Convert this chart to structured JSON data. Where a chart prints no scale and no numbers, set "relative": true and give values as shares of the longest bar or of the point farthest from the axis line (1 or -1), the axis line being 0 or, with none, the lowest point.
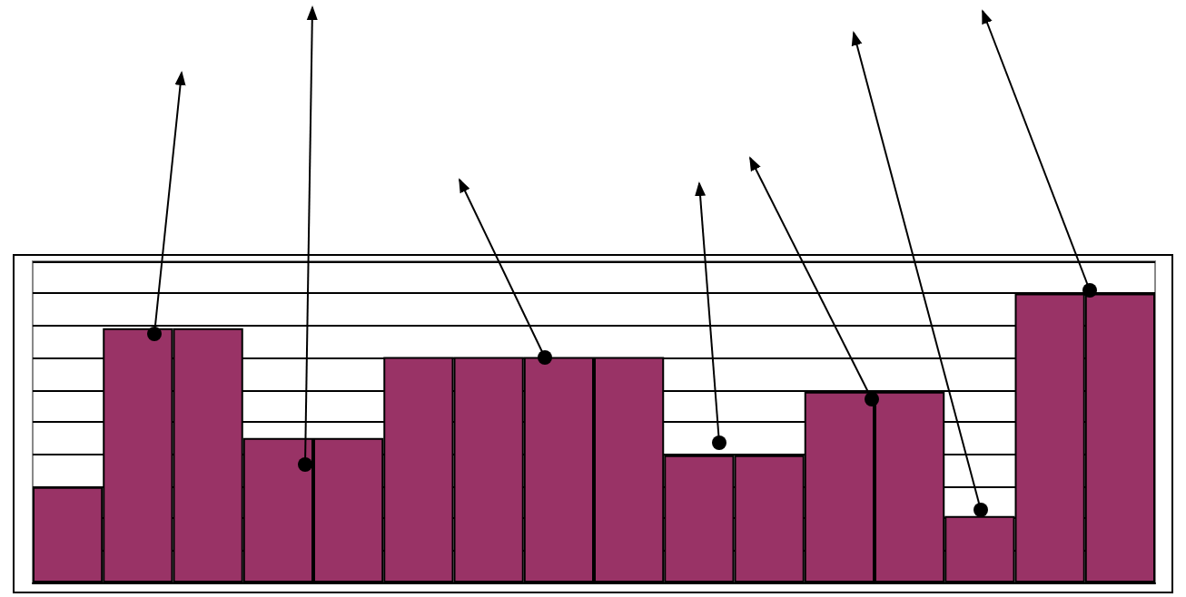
{
  "chart_data": {
    "type": "bar",
    "relative": true,
    "grid": "y",
    "color": "#993366",
    "categories": [
      null,
      null,
      null,
      null,
      null,
      null,
      null,
      null,
      null,
      null,
      null,
      null,
      null,
      null,
      null,
      null
    ],
    "values": [
      0.33,
      0.88,
      0.88,
      0.5,
      0.5,
      0.78,
      0.78,
      0.78,
      0.78,
      0.44,
      0.44,
      0.66,
      0.66,
      0.23,
      1,
      1
    ]
  }
}
